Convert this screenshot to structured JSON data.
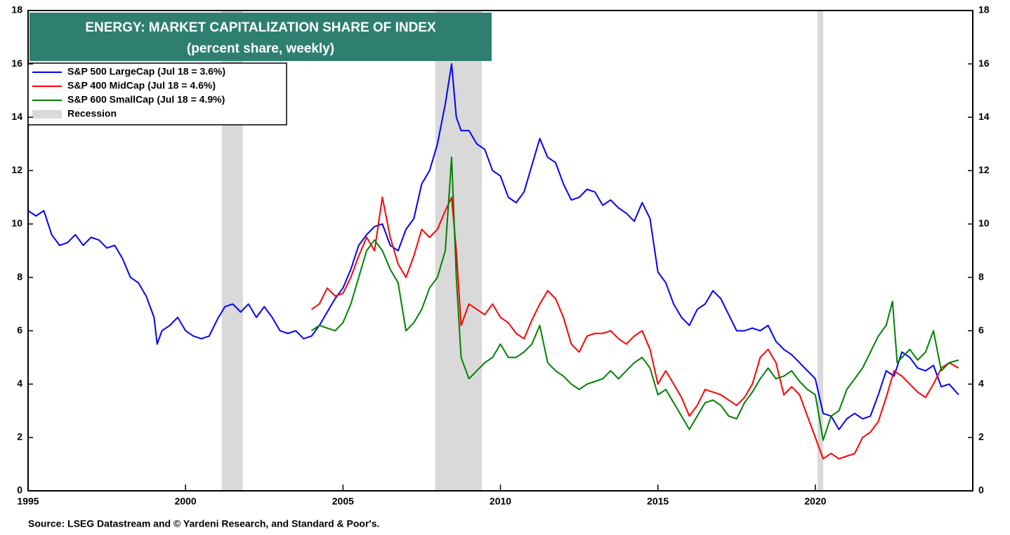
{
  "chart_data": {
    "type": "line",
    "title": "ENERGY: MARKET CAPITALIZATION SHARE OF INDEX",
    "subtitle": "(percent share, weekly)",
    "source": "Source: LSEG Datastream and © Yardeni Research, and Standard & Poor's.",
    "xlim": [
      1995,
      2025
    ],
    "xticks": [
      1995,
      2000,
      2005,
      2010,
      2015,
      2020
    ],
    "ylim": [
      0,
      18
    ],
    "yticks": [
      0,
      2,
      4,
      6,
      8,
      10,
      12,
      14,
      16,
      18
    ],
    "y2lim": [
      0,
      18
    ],
    "y2ticks": [
      0,
      2,
      4,
      6,
      8,
      10,
      12,
      14,
      16,
      18
    ],
    "legend": "upper left",
    "recession_label": "Recession",
    "recession_color": "#d9d9d9",
    "recessions": [
      [
        2001.15,
        2001.82
      ],
      [
        2007.93,
        2009.41
      ],
      [
        2020.07,
        2020.25
      ]
    ],
    "series": [
      {
        "name": "S&P 500 LargeCap (Jul 18 = 3.6%)",
        "color": "#0000ff",
        "x": [
          1995,
          1995.25,
          1995.5,
          1995.75,
          1996,
          1996.25,
          1996.5,
          1996.75,
          1997,
          1997.25,
          1997.5,
          1997.75,
          1998,
          1998.25,
          1998.5,
          1998.75,
          1999,
          1999.1,
          1999.25,
          1999.5,
          1999.75,
          2000,
          2000.25,
          2000.5,
          2000.75,
          2001,
          2001.25,
          2001.5,
          2001.75,
          2002,
          2002.25,
          2002.5,
          2002.75,
          2003,
          2003.25,
          2003.5,
          2003.75,
          2004,
          2004.25,
          2004.5,
          2004.75,
          2005,
          2005.25,
          2005.5,
          2005.75,
          2006,
          2006.25,
          2006.5,
          2006.75,
          2007,
          2007.25,
          2007.5,
          2007.75,
          2008,
          2008.25,
          2008.45,
          2008.6,
          2008.75,
          2009,
          2009.25,
          2009.5,
          2009.75,
          2010,
          2010.25,
          2010.5,
          2010.75,
          2011,
          2011.25,
          2011.5,
          2011.75,
          2012,
          2012.25,
          2012.5,
          2012.75,
          2013,
          2013.25,
          2013.5,
          2013.75,
          2014,
          2014.25,
          2014.5,
          2014.75,
          2015,
          2015.25,
          2015.5,
          2015.75,
          2016,
          2016.25,
          2016.5,
          2016.75,
          2017,
          2017.25,
          2017.5,
          2017.75,
          2018,
          2018.25,
          2018.5,
          2018.75,
          2019,
          2019.25,
          2019.5,
          2019.75,
          2020,
          2020.25,
          2020.5,
          2020.75,
          2021,
          2021.25,
          2021.5,
          2021.75,
          2022,
          2022.25,
          2022.5,
          2022.75,
          2023,
          2023.25,
          2023.5,
          2023.75,
          2024,
          2024.25,
          2024.55
        ],
        "values": [
          10.5,
          10.3,
          10.5,
          9.6,
          9.2,
          9.3,
          9.6,
          9.2,
          9.5,
          9.4,
          9.1,
          9.2,
          8.7,
          8.0,
          7.8,
          7.3,
          6.5,
          5.5,
          6.0,
          6.2,
          6.5,
          6.0,
          5.8,
          5.7,
          5.8,
          6.4,
          6.9,
          7.0,
          6.7,
          7.0,
          6.5,
          6.9,
          6.5,
          6.0,
          5.9,
          6.0,
          5.7,
          5.8,
          6.2,
          6.7,
          7.2,
          7.6,
          8.3,
          9.2,
          9.6,
          9.9,
          10.0,
          9.2,
          9.0,
          9.8,
          10.2,
          11.5,
          12.0,
          13.0,
          14.5,
          16.0,
          14.0,
          13.5,
          13.5,
          13.0,
          12.8,
          12.0,
          11.8,
          11.0,
          10.8,
          11.2,
          12.2,
          13.2,
          12.5,
          12.3,
          11.5,
          10.9,
          11.0,
          11.3,
          11.2,
          10.7,
          10.9,
          10.6,
          10.4,
          10.1,
          10.8,
          10.2,
          8.2,
          7.8,
          7.0,
          6.5,
          6.2,
          6.8,
          7.0,
          7.5,
          7.2,
          6.6,
          6.0,
          6.0,
          6.1,
          6.0,
          6.2,
          5.6,
          5.3,
          5.1,
          4.8,
          4.5,
          4.2,
          2.9,
          2.8,
          2.3,
          2.7,
          2.9,
          2.7,
          2.8,
          3.6,
          4.5,
          4.3,
          5.2,
          5.0,
          4.6,
          4.5,
          4.7,
          3.9,
          4.0,
          3.6
        ]
      },
      {
        "name": "S&P 400 MidCap (Jul 18 = 4.6%)",
        "color": "#ff0000",
        "x": [
          2004,
          2004.25,
          2004.5,
          2004.75,
          2005,
          2005.25,
          2005.5,
          2005.75,
          2006,
          2006.25,
          2006.5,
          2006.75,
          2007,
          2007.25,
          2007.5,
          2007.75,
          2008,
          2008.25,
          2008.45,
          2008.6,
          2008.75,
          2009,
          2009.25,
          2009.5,
          2009.75,
          2010,
          2010.25,
          2010.5,
          2010.75,
          2011,
          2011.25,
          2011.5,
          2011.75,
          2012,
          2012.25,
          2012.5,
          2012.75,
          2013,
          2013.25,
          2013.5,
          2013.75,
          2014,
          2014.25,
          2014.5,
          2014.75,
          2015,
          2015.25,
          2015.5,
          2015.75,
          2016,
          2016.25,
          2016.5,
          2016.75,
          2017,
          2017.25,
          2017.5,
          2017.75,
          2018,
          2018.25,
          2018.5,
          2018.75,
          2019,
          2019.25,
          2019.5,
          2019.75,
          2020,
          2020.25,
          2020.5,
          2020.75,
          2021,
          2021.25,
          2021.5,
          2021.75,
          2022,
          2022.25,
          2022.5,
          2022.75,
          2023,
          2023.25,
          2023.5,
          2023.75,
          2024,
          2024.25,
          2024.55
        ],
        "values": [
          6.8,
          7.0,
          7.6,
          7.3,
          7.4,
          8.0,
          8.8,
          9.5,
          9.0,
          11.0,
          9.5,
          8.5,
          8.0,
          8.8,
          9.8,
          9.5,
          9.8,
          10.5,
          11.0,
          9.0,
          6.2,
          7.0,
          6.8,
          6.6,
          7.0,
          6.5,
          6.3,
          5.9,
          5.7,
          6.4,
          7.0,
          7.5,
          7.2,
          6.5,
          5.5,
          5.2,
          5.8,
          5.9,
          5.9,
          6.0,
          5.7,
          5.5,
          5.8,
          6.0,
          5.3,
          4.0,
          4.5,
          4.0,
          3.5,
          2.8,
          3.2,
          3.8,
          3.7,
          3.6,
          3.4,
          3.2,
          3.5,
          4.0,
          5.0,
          5.3,
          4.8,
          3.6,
          3.9,
          3.6,
          2.8,
          2.0,
          1.2,
          1.4,
          1.2,
          1.3,
          1.4,
          2.0,
          2.2,
          2.6,
          3.5,
          4.5,
          4.3,
          4.0,
          3.7,
          3.5,
          4.0,
          4.6,
          4.8,
          4.6
        ]
      },
      {
        "name": "S&P 600 SmallCap (Jul 18 = 4.9%)",
        "color": "#008000",
        "x": [
          2004,
          2004.25,
          2004.5,
          2004.75,
          2005,
          2005.25,
          2005.5,
          2005.75,
          2006,
          2006.25,
          2006.5,
          2006.75,
          2007,
          2007.25,
          2007.5,
          2007.75,
          2008,
          2008.25,
          2008.45,
          2008.6,
          2008.75,
          2009,
          2009.25,
          2009.5,
          2009.75,
          2010,
          2010.25,
          2010.5,
          2010.75,
          2011,
          2011.25,
          2011.5,
          2011.75,
          2012,
          2012.25,
          2012.5,
          2012.75,
          2013,
          2013.25,
          2013.5,
          2013.75,
          2014,
          2014.25,
          2014.5,
          2014.75,
          2015,
          2015.25,
          2015.5,
          2015.75,
          2016,
          2016.25,
          2016.5,
          2016.75,
          2017,
          2017.25,
          2017.5,
          2017.75,
          2018,
          2018.25,
          2018.5,
          2018.75,
          2019,
          2019.25,
          2019.5,
          2019.75,
          2020,
          2020.25,
          2020.5,
          2020.75,
          2021,
          2021.25,
          2021.5,
          2021.75,
          2022,
          2022.25,
          2022.45,
          2022.6,
          2022.75,
          2023,
          2023.25,
          2023.5,
          2023.75,
          2024,
          2024.25,
          2024.55
        ],
        "values": [
          6.0,
          6.2,
          6.1,
          6.0,
          6.3,
          7.0,
          8.0,
          9.0,
          9.4,
          9.0,
          8.3,
          7.8,
          6.0,
          6.3,
          6.8,
          7.6,
          8.0,
          9.0,
          12.5,
          8.0,
          5.0,
          4.2,
          4.5,
          4.8,
          5.0,
          5.5,
          5.0,
          5.0,
          5.2,
          5.5,
          6.2,
          4.8,
          4.5,
          4.3,
          4.0,
          3.8,
          4.0,
          4.1,
          4.2,
          4.5,
          4.2,
          4.5,
          4.8,
          5.0,
          4.6,
          3.6,
          3.8,
          3.3,
          2.8,
          2.3,
          2.8,
          3.3,
          3.4,
          3.2,
          2.8,
          2.7,
          3.3,
          3.7,
          4.2,
          4.6,
          4.2,
          4.3,
          4.5,
          4.1,
          3.8,
          3.6,
          1.9,
          2.8,
          3.0,
          3.8,
          4.2,
          4.6,
          5.2,
          5.8,
          6.2,
          7.1,
          4.8,
          5.0,
          5.3,
          4.9,
          5.2,
          6.0,
          4.5,
          4.8,
          4.9
        ]
      }
    ]
  }
}
